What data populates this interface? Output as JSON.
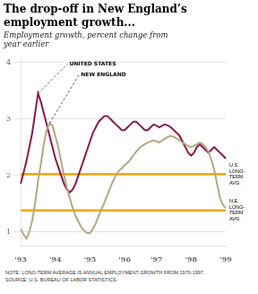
{
  "chart_data": {
    "type": "line",
    "title": "The drop-off in New England’s\nemployment growth...",
    "subtitle": "Employment growth, percent change from\nyear earlier",
    "categories": [
      "'93",
      null,
      null,
      null,
      null,
      null,
      null,
      null,
      null,
      null,
      null,
      null,
      "'94",
      null,
      null,
      null,
      null,
      null,
      null,
      null,
      null,
      null,
      null,
      null,
      "'95",
      null,
      null,
      null,
      null,
      null,
      null,
      null,
      null,
      null,
      null,
      null,
      "'96",
      null,
      null,
      null,
      null,
      null,
      null,
      null,
      null,
      null,
      null,
      "'97",
      null,
      null,
      null,
      null,
      null,
      null,
      null,
      null,
      null,
      null,
      null,
      "'98",
      null,
      null,
      null,
      null,
      null,
      null,
      null,
      null,
      null,
      null,
      null,
      "'99"
    ],
    "series": [
      {
        "name": "NEW ENGLAND",
        "color": "#b5a882",
        "values": [
          1.05,
          0.95,
          0.88,
          1.0,
          1.2,
          1.5,
          1.9,
          2.2,
          2.55,
          2.8,
          2.92,
          2.88,
          2.7,
          2.5,
          2.25,
          2.0,
          1.78,
          1.6,
          1.42,
          1.28,
          1.18,
          1.08,
          1.02,
          0.98,
          0.98,
          1.05,
          1.15,
          1.28,
          1.4,
          1.52,
          1.65,
          1.78,
          1.9,
          2.0,
          2.08,
          2.12,
          2.18,
          2.22,
          2.28,
          2.35,
          2.42,
          2.48,
          2.52,
          2.55,
          2.58,
          2.6,
          2.62,
          2.6,
          2.58,
          2.62,
          2.65,
          2.68,
          2.7,
          2.68,
          2.65,
          2.62,
          2.58,
          2.55,
          2.52,
          2.5,
          2.52,
          2.55,
          2.58,
          2.55,
          2.5,
          2.42,
          2.28,
          2.1,
          1.85,
          1.6,
          1.48,
          1.42
        ]
      },
      {
        "name": "UNITED STATES",
        "color": "#8b1a4a",
        "values": [
          1.85,
          2.05,
          2.25,
          2.5,
          2.75,
          3.1,
          3.45,
          3.3,
          3.1,
          2.9,
          2.7,
          2.5,
          2.3,
          2.15,
          2.0,
          1.85,
          1.75,
          1.7,
          1.75,
          1.85,
          2.0,
          2.15,
          2.3,
          2.45,
          2.6,
          2.75,
          2.85,
          2.95,
          3.0,
          3.05,
          3.05,
          3.0,
          2.95,
          2.9,
          2.85,
          2.8,
          2.8,
          2.85,
          2.9,
          2.95,
          2.95,
          2.9,
          2.85,
          2.8,
          2.8,
          2.85,
          2.9,
          2.88,
          2.85,
          2.88,
          2.9,
          2.88,
          2.85,
          2.8,
          2.75,
          2.7,
          2.6,
          2.5,
          2.4,
          2.35,
          2.4,
          2.5,
          2.55,
          2.5,
          2.45,
          2.4,
          2.45,
          2.5,
          2.45,
          2.4,
          2.35,
          2.3
        ]
      }
    ],
    "reference_lines": [
      {
        "value": 2.02,
        "label": "U.S.\nLONG-\nTERM\nAVG.",
        "color": "#f5a800"
      },
      {
        "value": 1.38,
        "label": "N.E.\nLONG-\nTERM\nAVG.",
        "color": "#f5a800"
      }
    ],
    "ylim": [
      0.75,
      4.1
    ],
    "yticks": [
      1,
      2,
      3,
      4
    ],
    "grid": true,
    "notes": [
      "NOTE: LONG-TERM AVERAGE IS ANNUAL EMPLOYMENT GROWTH FROM 1970-1997.",
      "SOURCE: U.S. BUREAU OF LABOR STATISTICS."
    ]
  }
}
